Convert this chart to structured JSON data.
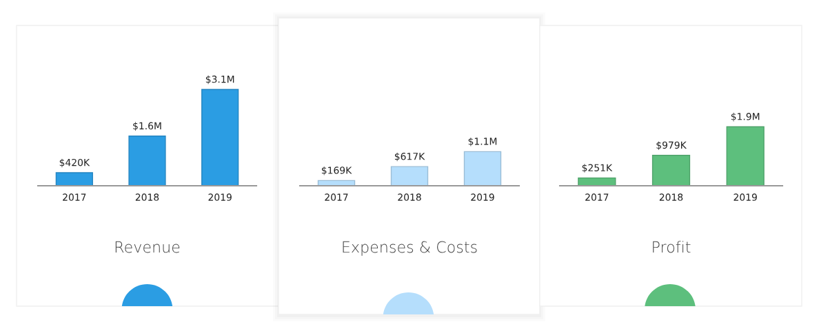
{
  "chart_data": [
    {
      "type": "bar",
      "title": "Revenue",
      "categories": [
        "2017",
        "2018",
        "2019"
      ],
      "values": [
        420000,
        1600000,
        3100000
      ],
      "value_labels": [
        "$420K",
        "$1.6M",
        "$3.1M"
      ],
      "color": "#2b9de3"
    },
    {
      "type": "bar",
      "title": "Expenses & Costs",
      "categories": [
        "2017",
        "2018",
        "2019"
      ],
      "values": [
        169000,
        617000,
        1100000
      ],
      "value_labels": [
        "$169K",
        "$617K",
        "$1.1M"
      ],
      "color": "#b5defc"
    },
    {
      "type": "bar",
      "title": "Profit",
      "categories": [
        "2017",
        "2018",
        "2019"
      ],
      "values": [
        251000,
        979000,
        1900000
      ],
      "value_labels": [
        "$251K",
        "$979K",
        "$1.9M"
      ],
      "color": "#5dbf7d"
    }
  ]
}
